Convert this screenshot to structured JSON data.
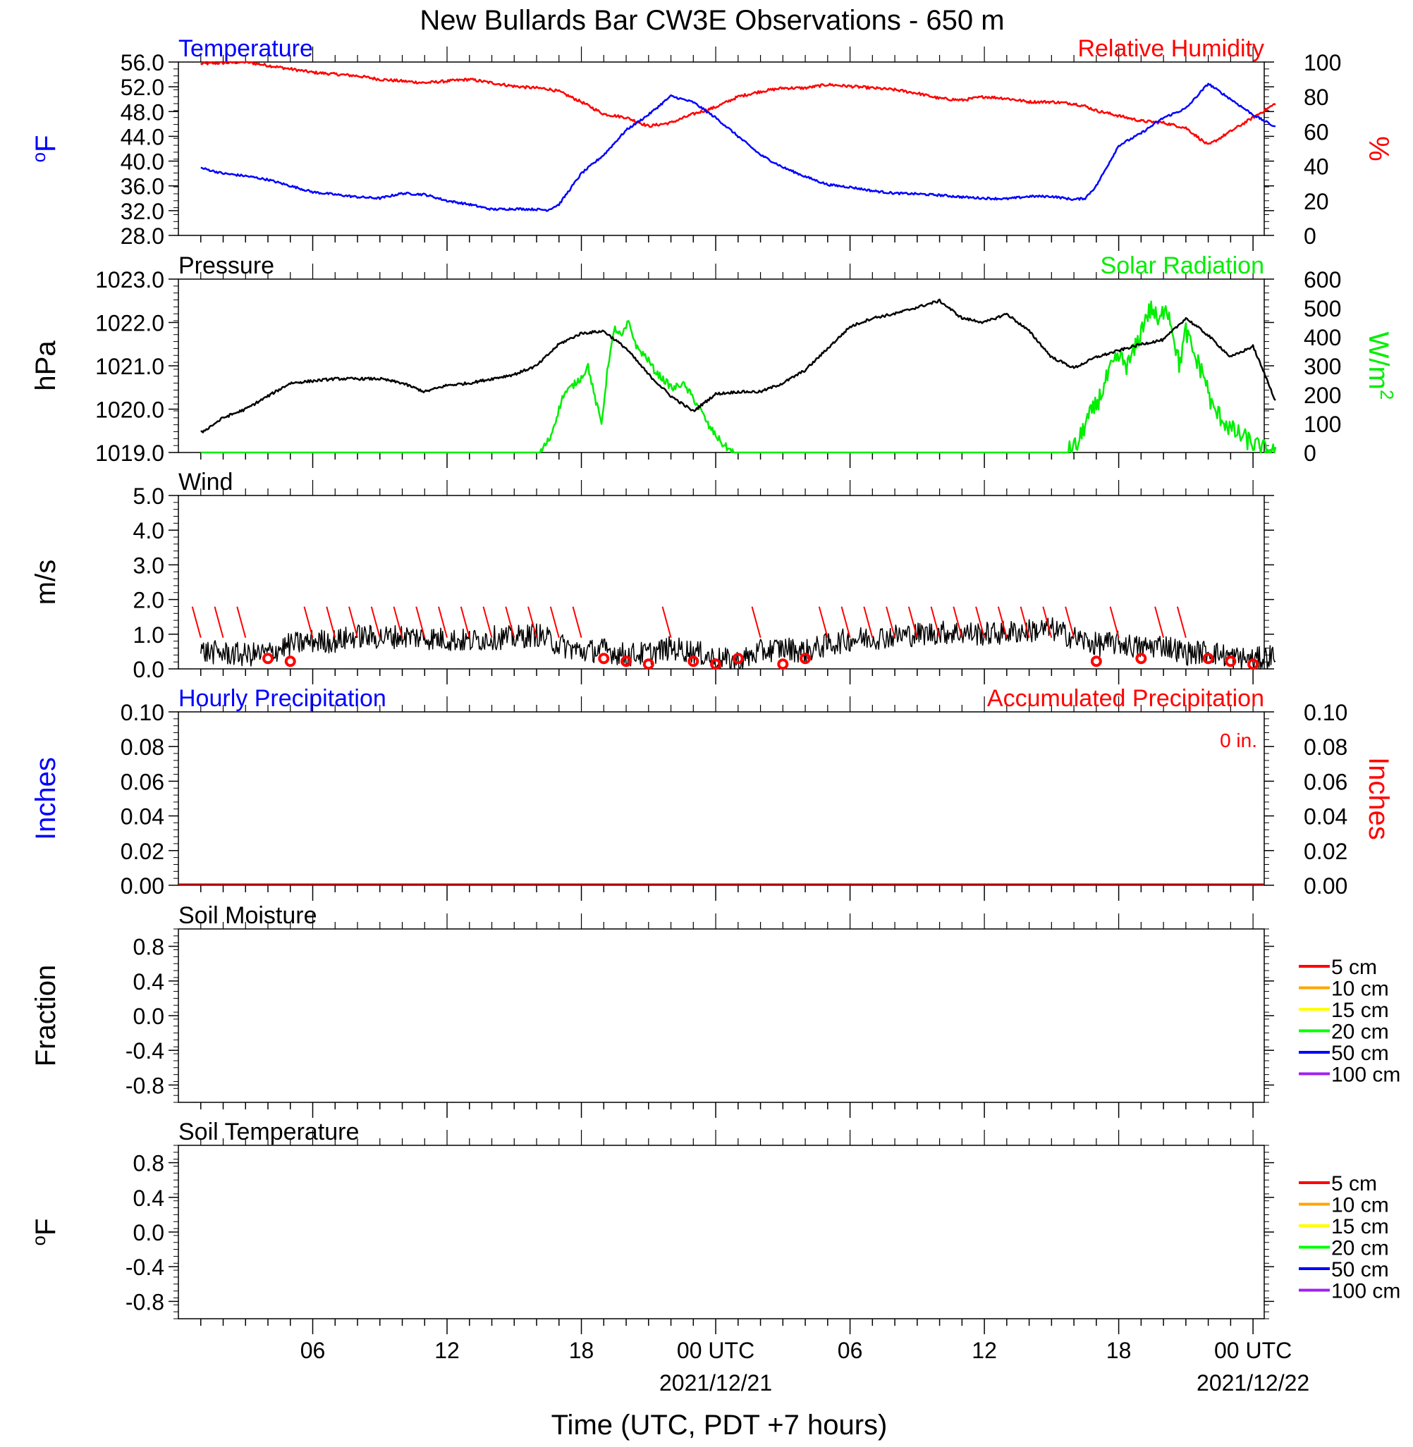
{
  "page": {
    "title": "New Bullards Bar CW3E Observations - 650 m",
    "xlabel": "Time (UTC, PDT +7 hours)"
  },
  "colors": {
    "black": "#000000",
    "blue": "#0000ff",
    "red": "#ff0000",
    "green": "#00ee00",
    "soil5": "#ff0000",
    "soil10": "#ffa500",
    "soil15": "#ffff00",
    "soil20": "#00ff00",
    "soil50": "#0000ff",
    "soil100": "#a020f0"
  },
  "chart_data": [
    {
      "id": "temp_rh",
      "type": "line",
      "title_left": "Temperature",
      "title_right": "Relative Humidity",
      "ylabel_left": "oF",
      "ylabel_right": "%",
      "ylim_left": [
        28,
        56
      ],
      "yticks_left": [
        "56.0",
        "52.0",
        "48.0",
        "44.0",
        "40.0",
        "36.0",
        "32.0",
        "28.0"
      ],
      "ylim_right": [
        0,
        100
      ],
      "yticks_right": [
        "100",
        "80",
        "60",
        "40",
        "20",
        "0"
      ],
      "x_hours": [
        0,
        1,
        2,
        3,
        4,
        5,
        6,
        7,
        8,
        9,
        10,
        11,
        12,
        13,
        14,
        15,
        15.5,
        16,
        17,
        18,
        19,
        20,
        21,
        22,
        23,
        24,
        25,
        26,
        27,
        28,
        29,
        30,
        31,
        32,
        33,
        34,
        35,
        36,
        37,
        38,
        39,
        39.5,
        40,
        41,
        42,
        43,
        44,
        45,
        46,
        47,
        48
      ],
      "series": [
        {
          "name": "Temperature",
          "axis": "left",
          "color": "blue",
          "values": [
            38.9,
            38.0,
            37.6,
            37.0,
            36.0,
            35.0,
            34.6,
            34.2,
            34.0,
            34.8,
            34.6,
            33.6,
            33.0,
            32.2,
            32.3,
            32.2,
            32.1,
            33.0,
            38.0,
            41.0,
            45.0,
            47.5,
            50.5,
            49.5,
            47.0,
            44.0,
            41.0,
            39.0,
            37.5,
            36.2,
            35.8,
            35.2,
            34.8,
            34.7,
            34.5,
            34.2,
            34.0,
            33.9,
            34.3,
            34.3,
            33.8,
            34.0,
            36.0,
            42.5,
            44.5,
            47.0,
            48.5,
            52.5,
            50.0,
            47.5,
            45.5
          ]
        },
        {
          "name": "Relative Humidity",
          "axis": "right",
          "color": "red",
          "values": [
            99,
            99.5,
            100,
            98,
            96,
            94,
            93,
            92,
            90,
            89,
            88,
            89,
            90,
            88,
            86,
            85,
            84.5,
            83,
            77,
            70,
            68,
            63,
            65,
            70,
            74,
            80,
            83,
            85,
            85,
            87,
            86,
            85,
            84,
            82,
            79,
            78,
            80,
            79,
            77,
            77,
            76,
            74.5,
            72,
            69,
            66,
            65,
            62,
            52,
            60,
            68,
            76
          ]
        }
      ]
    },
    {
      "id": "pressure_solar",
      "type": "line",
      "title_left": "Pressure",
      "title_right": "Solar Radiation",
      "ylabel_left": "hPa",
      "ylabel_right": "W/m",
      "ylabel_right_sup": "2",
      "ylim_left": [
        1019,
        1023
      ],
      "yticks_left": [
        "1023.0",
        "1022.0",
        "1021.0",
        "1020.0",
        "1019.0"
      ],
      "ylim_right": [
        0,
        600
      ],
      "yticks_right": [
        "600",
        "500",
        "400",
        "300",
        "200",
        "100",
        "0"
      ],
      "series": [
        {
          "name": "Pressure",
          "axis": "left",
          "color": "black",
          "x_hours": [
            0,
            1,
            2,
            3,
            4,
            5,
            6,
            7,
            8,
            9,
            10,
            11,
            12,
            13,
            14,
            15,
            16,
            17,
            18,
            19,
            20,
            21,
            22,
            23,
            24,
            25,
            26,
            27,
            28,
            29,
            30,
            31,
            32,
            33,
            34,
            35,
            36,
            37,
            38,
            39,
            40,
            41,
            42,
            43,
            44,
            45,
            46,
            47,
            48
          ],
          "values": [
            1019.45,
            1019.8,
            1020.0,
            1020.3,
            1020.6,
            1020.65,
            1020.7,
            1020.7,
            1020.7,
            1020.6,
            1020.4,
            1020.55,
            1020.6,
            1020.7,
            1020.8,
            1021.0,
            1021.5,
            1021.75,
            1021.8,
            1021.4,
            1020.8,
            1020.3,
            1019.95,
            1020.35,
            1020.4,
            1020.4,
            1020.6,
            1020.9,
            1021.4,
            1021.9,
            1022.1,
            1022.2,
            1022.35,
            1022.5,
            1022.1,
            1022.0,
            1022.2,
            1021.8,
            1021.2,
            1020.95,
            1021.2,
            1021.35,
            1021.5,
            1021.6,
            1022.1,
            1021.7,
            1021.2,
            1021.45,
            1020.2
          ]
        },
        {
          "name": "Solar Radiation",
          "axis": "right",
          "color": "green",
          "x_hours": [
            0,
            14.8,
            15.2,
            15.6,
            16.2,
            16.6,
            17.0,
            17.3,
            17.6,
            17.9,
            18.2,
            18.5,
            18.8,
            19.1,
            19.5,
            19.9,
            20.3,
            20.7,
            21.1,
            21.5,
            21.9,
            22.3,
            22.7,
            23.0,
            23.3,
            23.6,
            24.0,
            48.0
          ],
          "values": [
            0,
            0,
            5,
            50,
            200,
            230,
            260,
            300,
            190,
            100,
            310,
            430,
            400,
            450,
            360,
            330,
            280,
            250,
            220,
            240,
            200,
            150,
            90,
            60,
            30,
            10,
            0,
            0
          ],
          "values_day2": {
            "x_hours": [
              38.7,
              39.2,
              39.5,
              39.9,
              40.2,
              40.6,
              41.0,
              41.4,
              41.8,
              42.2,
              42.5,
              42.8,
              43.1,
              43.4,
              43.7,
              44.0,
              44.4,
              44.8,
              45.2,
              45.6,
              46.0,
              46.4,
              46.8,
              47.2,
              47.6,
              48.0
            ],
            "values": [
              0,
              30,
              100,
              150,
              200,
              280,
              330,
              300,
              370,
              470,
              500,
              440,
              520,
              430,
              300,
              420,
              330,
              270,
              150,
              120,
              80,
              60,
              40,
              20,
              5,
              0
            ]
          }
        }
      ]
    },
    {
      "id": "wind",
      "type": "line",
      "title_left": "Wind",
      "ylabel_left": "m/s",
      "ylim_left": [
        0,
        5
      ],
      "yticks_left": [
        "5.0",
        "4.0",
        "3.0",
        "2.0",
        "1.0",
        "0.0"
      ],
      "series": [
        {
          "name": "Wind speed",
          "axis": "left",
          "color": "black",
          "x_hours": [
            0,
            2,
            3,
            4,
            5,
            6,
            7,
            8,
            9,
            10,
            11,
            12,
            13,
            14,
            15,
            16,
            17,
            18,
            19,
            20,
            21,
            22,
            23,
            24,
            25,
            26,
            27,
            28,
            29,
            30,
            31,
            32,
            33,
            34,
            35,
            36,
            37,
            38,
            39,
            40,
            41,
            42,
            43,
            44,
            45,
            46,
            47,
            48
          ],
          "values": [
            0.5,
            0.4,
            0.45,
            0.7,
            0.8,
            0.8,
            0.95,
            0.9,
            0.95,
            0.9,
            0.85,
            0.8,
            0.9,
            0.9,
            1.0,
            0.7,
            0.5,
            0.55,
            0.4,
            0.45,
            0.6,
            0.5,
            0.3,
            0.2,
            0.5,
            0.6,
            0.5,
            0.7,
            0.85,
            0.9,
            0.95,
            1.0,
            1.05,
            1.05,
            1.0,
            1.05,
            1.1,
            1.15,
            0.9,
            0.7,
            0.75,
            0.6,
            0.7,
            0.45,
            0.5,
            0.35,
            0.25,
            0.4
          ]
        }
      ],
      "wind_flags_calm_hours": [
        3,
        4,
        18,
        19,
        20,
        22,
        23,
        24,
        26,
        27,
        40,
        42,
        45,
        46,
        47
      ]
    },
    {
      "id": "precip",
      "type": "line",
      "title_left": "Hourly Precipitation",
      "title_right": "Accumulated Precipitation",
      "annotation": "0 in.",
      "ylabel_left": "Inches",
      "ylabel_right": "Inches",
      "ylim_left": [
        0,
        0.1
      ],
      "yticks_left": [
        "0.10",
        "0.08",
        "0.06",
        "0.04",
        "0.02",
        "0.00"
      ],
      "ylim_right": [
        0,
        0.1
      ],
      "yticks_right": [
        "0.10",
        "0.08",
        "0.06",
        "0.04",
        "0.02",
        "0.00"
      ],
      "series": [
        {
          "name": "Hourly Precipitation",
          "axis": "left",
          "color": "blue",
          "x_hours": [
            0,
            48
          ],
          "values": [
            0,
            0
          ]
        },
        {
          "name": "Accumulated Precipitation",
          "axis": "right",
          "color": "red",
          "x_hours": [
            0,
            48
          ],
          "values": [
            0,
            0
          ]
        }
      ]
    },
    {
      "id": "soil_moisture",
      "type": "line",
      "title_left": "Soil Moisture",
      "ylabel_left": "Fraction",
      "ylim_left": [
        -1,
        1
      ],
      "yticks_left": [
        "0.8",
        "0.4",
        "0.0",
        "-0.4",
        "-0.8"
      ],
      "legend": [
        "5 cm",
        "10 cm",
        "15 cm",
        "20 cm",
        "50 cm",
        "100 cm"
      ],
      "series": []
    },
    {
      "id": "soil_temperature",
      "type": "line",
      "title_left": "Soil Temperature",
      "ylabel_left": "oF",
      "ylim_left": [
        -1,
        1
      ],
      "yticks_left": [
        "0.8",
        "0.4",
        "0.0",
        "-0.4",
        "-0.8"
      ],
      "legend": [
        "5 cm",
        "10 cm",
        "15 cm",
        "20 cm",
        "50 cm",
        "100 cm"
      ],
      "series": []
    }
  ],
  "x_axis": {
    "range_hours": [
      -1,
      47.5
    ],
    "tick_labels": [
      {
        "hour": 5,
        "label": "06"
      },
      {
        "hour": 11,
        "label": "12"
      },
      {
        "hour": 17,
        "label": "18"
      },
      {
        "hour": 23,
        "label": "00 UTC",
        "sub": "2021/12/21"
      },
      {
        "hour": 29,
        "label": "06"
      },
      {
        "hour": 35,
        "label": "12"
      },
      {
        "hour": 41,
        "label": "18"
      },
      {
        "hour": 47,
        "label": "00 UTC",
        "sub": "2021/12/22"
      }
    ]
  }
}
